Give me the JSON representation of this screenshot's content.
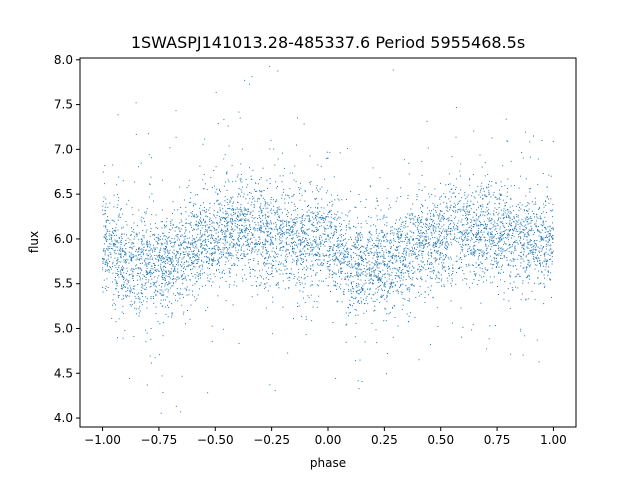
{
  "chart_data": {
    "type": "scatter",
    "title": "1SWASPJ141013.28-485337.6 Period 5955468.5s",
    "xlabel": "phase",
    "ylabel": "flux",
    "xlim": [
      -1.1,
      1.1
    ],
    "ylim": [
      3.9,
      8.02
    ],
    "x_ticks": [
      -1.0,
      -0.75,
      -0.5,
      -0.25,
      0.0,
      0.25,
      0.5,
      0.75,
      1.0
    ],
    "x_tick_labels": [
      "−1.00",
      "−0.75",
      "−0.50",
      "−0.25",
      "0.00",
      "0.25",
      "0.50",
      "0.75",
      "1.00"
    ],
    "y_ticks": [
      4.0,
      4.5,
      5.0,
      5.5,
      6.0,
      6.5,
      7.0,
      7.5,
      8.0
    ],
    "y_tick_labels": [
      "4.0",
      "4.5",
      "5.0",
      "5.5",
      "6.0",
      "6.5",
      "7.0",
      "7.5",
      "8.0"
    ],
    "grid": false,
    "legend": false,
    "marker_color": "#1f77b4",
    "series": [
      {
        "x_range": [
          -1.0,
          1.0
        ],
        "point_count": 6000,
        "profile_phase": [
          -1.0,
          -0.9,
          -0.8,
          -0.7,
          -0.6,
          -0.5,
          -0.4,
          -0.3,
          -0.2,
          -0.1,
          0.0,
          0.1,
          0.2,
          0.3,
          0.4,
          0.5,
          0.6,
          0.7,
          0.8,
          0.9,
          1.0
        ],
        "profile_flux": [
          6.0,
          5.72,
          5.7,
          5.72,
          5.95,
          6.0,
          6.1,
          6.1,
          6.02,
          5.98,
          6.0,
          5.72,
          5.7,
          5.72,
          5.95,
          6.0,
          6.1,
          6.1,
          6.02,
          5.98,
          6.0
        ]
      }
    ]
  }
}
